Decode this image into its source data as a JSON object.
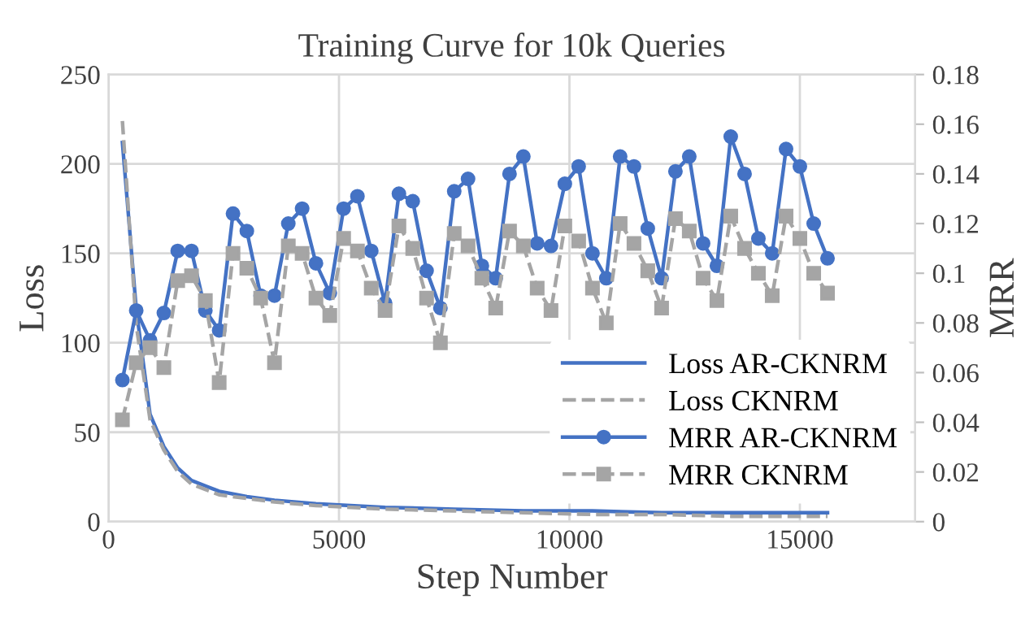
{
  "chart_data": {
    "type": "line",
    "title": "Training Curve for 10k Queries",
    "xlabel": "Step Number",
    "ylabel": "Loss",
    "y2label": "MRR",
    "xlim": [
      0,
      17500
    ],
    "xticks": [
      0,
      5000,
      10000,
      15000
    ],
    "ylim": [
      0,
      250
    ],
    "yticks": [
      0,
      50,
      100,
      150,
      200,
      250
    ],
    "y2lim": [
      0,
      0.18
    ],
    "y2ticks": [
      0,
      0.02,
      0.04,
      0.06,
      0.08,
      0.1,
      0.12,
      0.14,
      0.16,
      0.18
    ],
    "grid": true,
    "legend": "bottom right",
    "series": [
      {
        "name": "Loss AR-CKNRM",
        "color": "#4472c4",
        "marker": "none",
        "line_style": "solid",
        "x": [
          300,
          600,
          900,
          1200,
          1500,
          1800,
          2100,
          2400,
          3000,
          3600,
          4500,
          6000,
          7500,
          9000,
          10500,
          12000,
          13500,
          15600
        ],
        "values": [
          212,
          119,
          60,
          42,
          30,
          23,
          20,
          17,
          14,
          12,
          10,
          8,
          7,
          6,
          6,
          5,
          5,
          5
        ]
      },
      {
        "name": "Loss CKNRM",
        "color": "#a5a5a5",
        "marker": "none",
        "line_style": "dashed",
        "x": [
          300,
          600,
          900,
          1200,
          1500,
          1800,
          2100,
          2400,
          3000,
          3600,
          4500,
          6000,
          7500,
          9000,
          10500,
          12000,
          13500,
          15600
        ],
        "values": [
          224,
          110,
          57,
          40,
          28,
          21,
          18,
          15,
          13,
          11,
          9,
          7,
          6,
          5,
          4,
          4,
          3,
          3
        ]
      },
      {
        "name": "MRR AR-CKNRM",
        "color": "#4472c4",
        "marker": "circle",
        "line_style": "solid",
        "axis": "y2",
        "x": [
          300,
          600,
          900,
          1200,
          1500,
          1800,
          2100,
          2400,
          2700,
          3000,
          3300,
          3600,
          3900,
          4200,
          4500,
          4800,
          5100,
          5400,
          5700,
          6000,
          6300,
          6600,
          6900,
          7200,
          7500,
          7800,
          8100,
          8400,
          8700,
          9000,
          9300,
          9600,
          9900,
          10200,
          10500,
          10800,
          11100,
          11400,
          11700,
          12000,
          12300,
          12600,
          12900,
          13200,
          13500,
          13800,
          14100,
          14400,
          14700,
          15000,
          15300,
          15600
        ],
        "values": [
          0.057,
          0.085,
          0.073,
          0.084,
          0.109,
          0.109,
          0.085,
          0.077,
          0.124,
          0.117,
          0.091,
          0.091,
          0.12,
          0.126,
          0.104,
          0.092,
          0.126,
          0.131,
          0.109,
          0.088,
          0.132,
          0.129,
          0.101,
          0.086,
          0.133,
          0.138,
          0.103,
          0.098,
          0.14,
          0.147,
          0.112,
          0.111,
          0.136,
          0.143,
          0.108,
          0.098,
          0.147,
          0.143,
          0.118,
          0.098,
          0.141,
          0.147,
          0.112,
          0.103,
          0.155,
          0.14,
          0.114,
          0.108,
          0.15,
          0.143,
          0.12,
          0.106
        ]
      },
      {
        "name": "MRR CKNRM",
        "color": "#a5a5a5",
        "marker": "square",
        "line_style": "dashed",
        "axis": "y2",
        "x": [
          300,
          600,
          900,
          1200,
          1500,
          1800,
          2100,
          2400,
          2700,
          3000,
          3300,
          3600,
          3900,
          4200,
          4500,
          4800,
          5100,
          5400,
          5700,
          6000,
          6300,
          6600,
          6900,
          7200,
          7500,
          7800,
          8100,
          8400,
          8700,
          9000,
          9300,
          9600,
          9900,
          10200,
          10500,
          10800,
          11100,
          11400,
          11700,
          12000,
          12300,
          12600,
          12900,
          13200,
          13500,
          13800,
          14100,
          14400,
          14700,
          15000,
          15300,
          15600
        ],
        "values": [
          0.041,
          0.064,
          0.07,
          0.062,
          0.097,
          0.099,
          0.089,
          0.056,
          0.108,
          0.102,
          0.09,
          0.064,
          0.111,
          0.108,
          0.09,
          0.083,
          0.114,
          0.109,
          0.094,
          0.085,
          0.119,
          0.11,
          0.09,
          0.072,
          0.116,
          0.111,
          0.098,
          0.086,
          0.117,
          0.111,
          0.094,
          0.085,
          0.119,
          0.113,
          0.094,
          0.08,
          0.12,
          0.112,
          0.101,
          0.086,
          0.122,
          0.117,
          0.098,
          0.089,
          0.123,
          0.11,
          0.1,
          0.091,
          0.123,
          0.114,
          0.1,
          0.092
        ]
      }
    ]
  }
}
